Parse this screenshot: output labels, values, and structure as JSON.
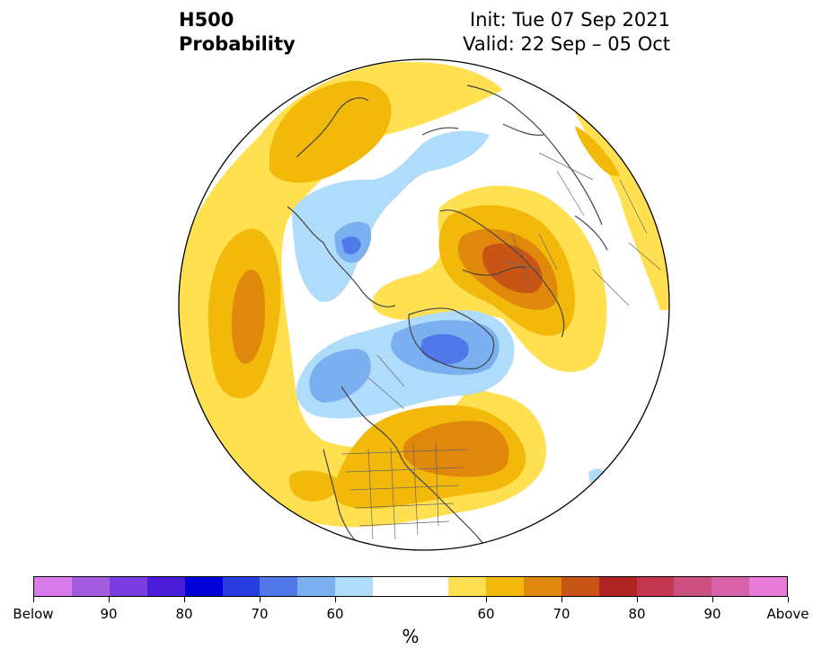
{
  "title": {
    "left_line1": "H500",
    "left_line2": "Probability",
    "right_line1": "Init: Tue 07 Sep 2021",
    "right_line2": "Valid: 22 Sep – 05 Oct"
  },
  "colorbar": {
    "colors": [
      "#d87aea",
      "#a45be0",
      "#7a3ee0",
      "#4a1ed8",
      "#0000d8",
      "#2a3ee0",
      "#5078e8",
      "#7ab0f0",
      "#aedcfa",
      "#ffffff",
      "#ffffff",
      "#ffe050",
      "#f2b90a",
      "#e0880c",
      "#c85416",
      "#b02424",
      "#c23650",
      "#cc5080",
      "#d862a8",
      "#e87ad8"
    ],
    "labels": [
      "Below",
      "90",
      "80",
      "70",
      "60",
      "60",
      "70",
      "80",
      "90",
      "Above"
    ],
    "unit": "%"
  },
  "map": {
    "projection": "north polar stereographic",
    "features": {
      "pacific_above_normal": "yellow-orange",
      "canada_below_normal": "blue",
      "greenland_below_normal": "blue",
      "eastern_us_above_normal": "orange",
      "europe_above_normal": "orange-red",
      "siberia_below_normal": "light blue"
    }
  }
}
